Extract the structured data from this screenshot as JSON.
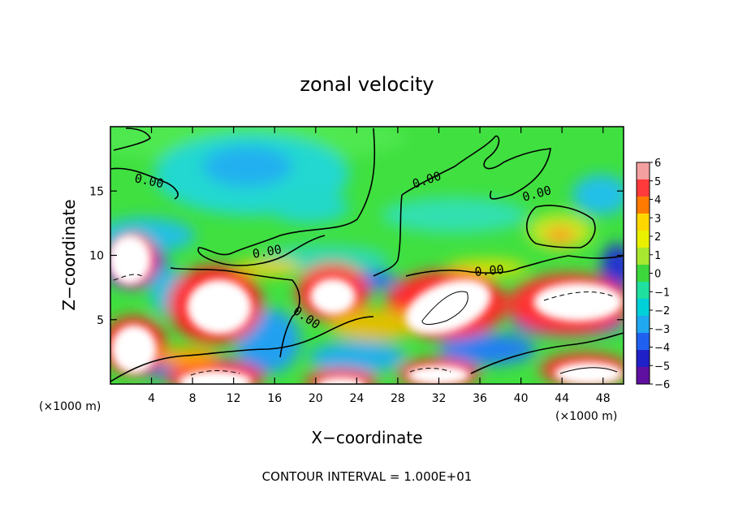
{
  "chart_data": {
    "type": "heatmap",
    "title": "zonal velocity",
    "xlabel": "X−coordinate",
    "ylabel": "Z−coordinate",
    "x_unit_label": "(×1000 m)",
    "y_unit_label": "(×1000 m)",
    "footer": "CONTOUR INTERVAL = 1.000E+01",
    "xlim": [
      0,
      50
    ],
    "ylim": [
      0,
      20
    ],
    "x_ticks": [
      4,
      8,
      12,
      16,
      20,
      24,
      28,
      32,
      36,
      40,
      44,
      48
    ],
    "y_ticks": [
      5,
      10,
      15
    ],
    "colorbar": {
      "range": [
        -6,
        6
      ],
      "ticks": [
        "6",
        "5",
        "4",
        "3",
        "2",
        "1",
        "0",
        "−1",
        "−2",
        "−3",
        "−4",
        "−5",
        "−6"
      ],
      "colors": [
        "#f4a0a0",
        "#ff3a3a",
        "#ff7a00",
        "#ffd700",
        "#e8f000",
        "#a8e830",
        "#3cd83c",
        "#20e0a0",
        "#00d0d8",
        "#20a8f0",
        "#2060f0",
        "#2020c8",
        "#6010a0"
      ]
    },
    "contour_labels": [
      "0.00",
      "0.00",
      "0.00",
      "0.00",
      "0.00",
      "0.00"
    ],
    "background_color": "#40e040",
    "strong_region_color": "#ffffff"
  }
}
